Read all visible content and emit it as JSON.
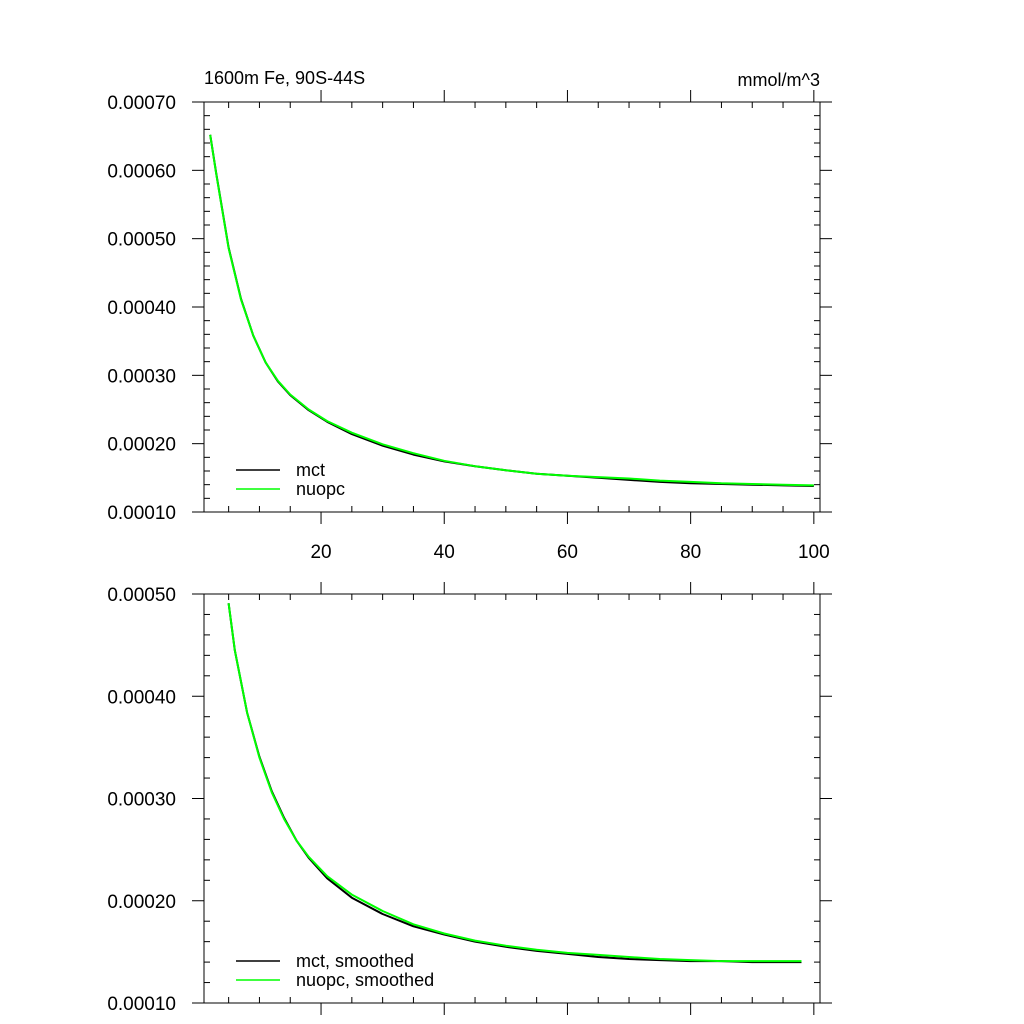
{
  "header": {
    "left_title": "1600m Fe, 90S-44S",
    "right_title": "mmol/m^3"
  },
  "chart_data": [
    {
      "type": "line",
      "title": "",
      "xlim": [
        1,
        101
      ],
      "ylim": [
        0.0001,
        0.0007
      ],
      "x_ticks": [
        20,
        40,
        60,
        80,
        100
      ],
      "x_tick_labels": [
        "20",
        "40",
        "60",
        "80",
        "100"
      ],
      "y_ticks": [
        0.0001,
        0.0002,
        0.0003,
        0.0004,
        0.0005,
        0.0006,
        0.0007
      ],
      "y_tick_labels": [
        "0.00010",
        "0.00020",
        "0.00030",
        "0.00040",
        "0.00050",
        "0.00060",
        "0.00070"
      ],
      "grid": false,
      "legend_position": "bottom-left",
      "series": [
        {
          "name": "mct",
          "color": "#000000",
          "x": [
            2,
            3,
            5,
            7,
            9,
            11,
            13,
            15,
            18,
            21,
            25,
            30,
            35,
            40,
            45,
            50,
            55,
            60,
            65,
            70,
            75,
            80,
            85,
            90,
            95,
            100
          ],
          "values": [
            0.000652,
            0.000595,
            0.000487,
            0.000412,
            0.000358,
            0.000319,
            0.000291,
            0.000271,
            0.000249,
            0.000232,
            0.000214,
            0.000197,
            0.000184,
            0.000174,
            0.000167,
            0.000161,
            0.000156,
            0.000153,
            0.00015,
            0.000147,
            0.000144,
            0.000142,
            0.000141,
            0.00014,
            0.000139,
            0.000138
          ]
        },
        {
          "name": "nuopc",
          "color": "#00ff00",
          "x": [
            2,
            3,
            5,
            7,
            9,
            11,
            13,
            15,
            18,
            21,
            25,
            30,
            35,
            40,
            45,
            50,
            55,
            60,
            65,
            70,
            75,
            80,
            85,
            90,
            95,
            100
          ],
          "values": [
            0.000652,
            0.000594,
            0.000486,
            0.000411,
            0.000358,
            0.000319,
            0.000292,
            0.000272,
            0.00025,
            0.000233,
            0.000216,
            0.000199,
            0.000186,
            0.000175,
            0.000167,
            0.000161,
            0.000156,
            0.000153,
            0.000151,
            0.000149,
            0.000146,
            0.000144,
            0.000142,
            0.000141,
            0.00014,
            0.000139
          ]
        }
      ]
    },
    {
      "type": "line",
      "title": "",
      "xlim": [
        1,
        101
      ],
      "ylim": [
        0.0001,
        0.0005
      ],
      "x_ticks": [
        20,
        40,
        60,
        80,
        100
      ],
      "x_tick_labels": [],
      "y_ticks": [
        0.0001,
        0.0002,
        0.0003,
        0.0004,
        0.0005
      ],
      "y_tick_labels": [
        "0.00010",
        "0.00020",
        "0.00030",
        "0.00040",
        "0.00050"
      ],
      "grid": false,
      "legend_position": "bottom-left",
      "series": [
        {
          "name": "mct, smoothed",
          "color": "#000000",
          "x": [
            5,
            6,
            8,
            10,
            12,
            14,
            16,
            18,
            21,
            25,
            30,
            35,
            40,
            45,
            50,
            55,
            60,
            65,
            70,
            75,
            80,
            85,
            90,
            98
          ],
          "values": [
            0.000491,
            0.000445,
            0.000384,
            0.000341,
            0.000307,
            0.000281,
            0.000259,
            0.000242,
            0.000222,
            0.000203,
            0.000187,
            0.000175,
            0.000167,
            0.00016,
            0.000155,
            0.000151,
            0.000148,
            0.000145,
            0.000143,
            0.000142,
            0.000141,
            0.000141,
            0.00014,
            0.00014
          ]
        },
        {
          "name": "nuopc, smoothed",
          "color": "#00ff00",
          "x": [
            5,
            6,
            8,
            10,
            12,
            14,
            16,
            18,
            21,
            25,
            30,
            35,
            40,
            45,
            50,
            55,
            60,
            65,
            70,
            75,
            80,
            85,
            90,
            98
          ],
          "values": [
            0.000491,
            0.000445,
            0.000384,
            0.00034,
            0.000306,
            0.00028,
            0.000259,
            0.000243,
            0.000224,
            0.000206,
            0.00019,
            0.000177,
            0.000168,
            0.000161,
            0.000156,
            0.000152,
            0.000149,
            0.000147,
            0.000145,
            0.000143,
            0.000142,
            0.000141,
            0.000141,
            0.000141
          ]
        }
      ]
    }
  ]
}
